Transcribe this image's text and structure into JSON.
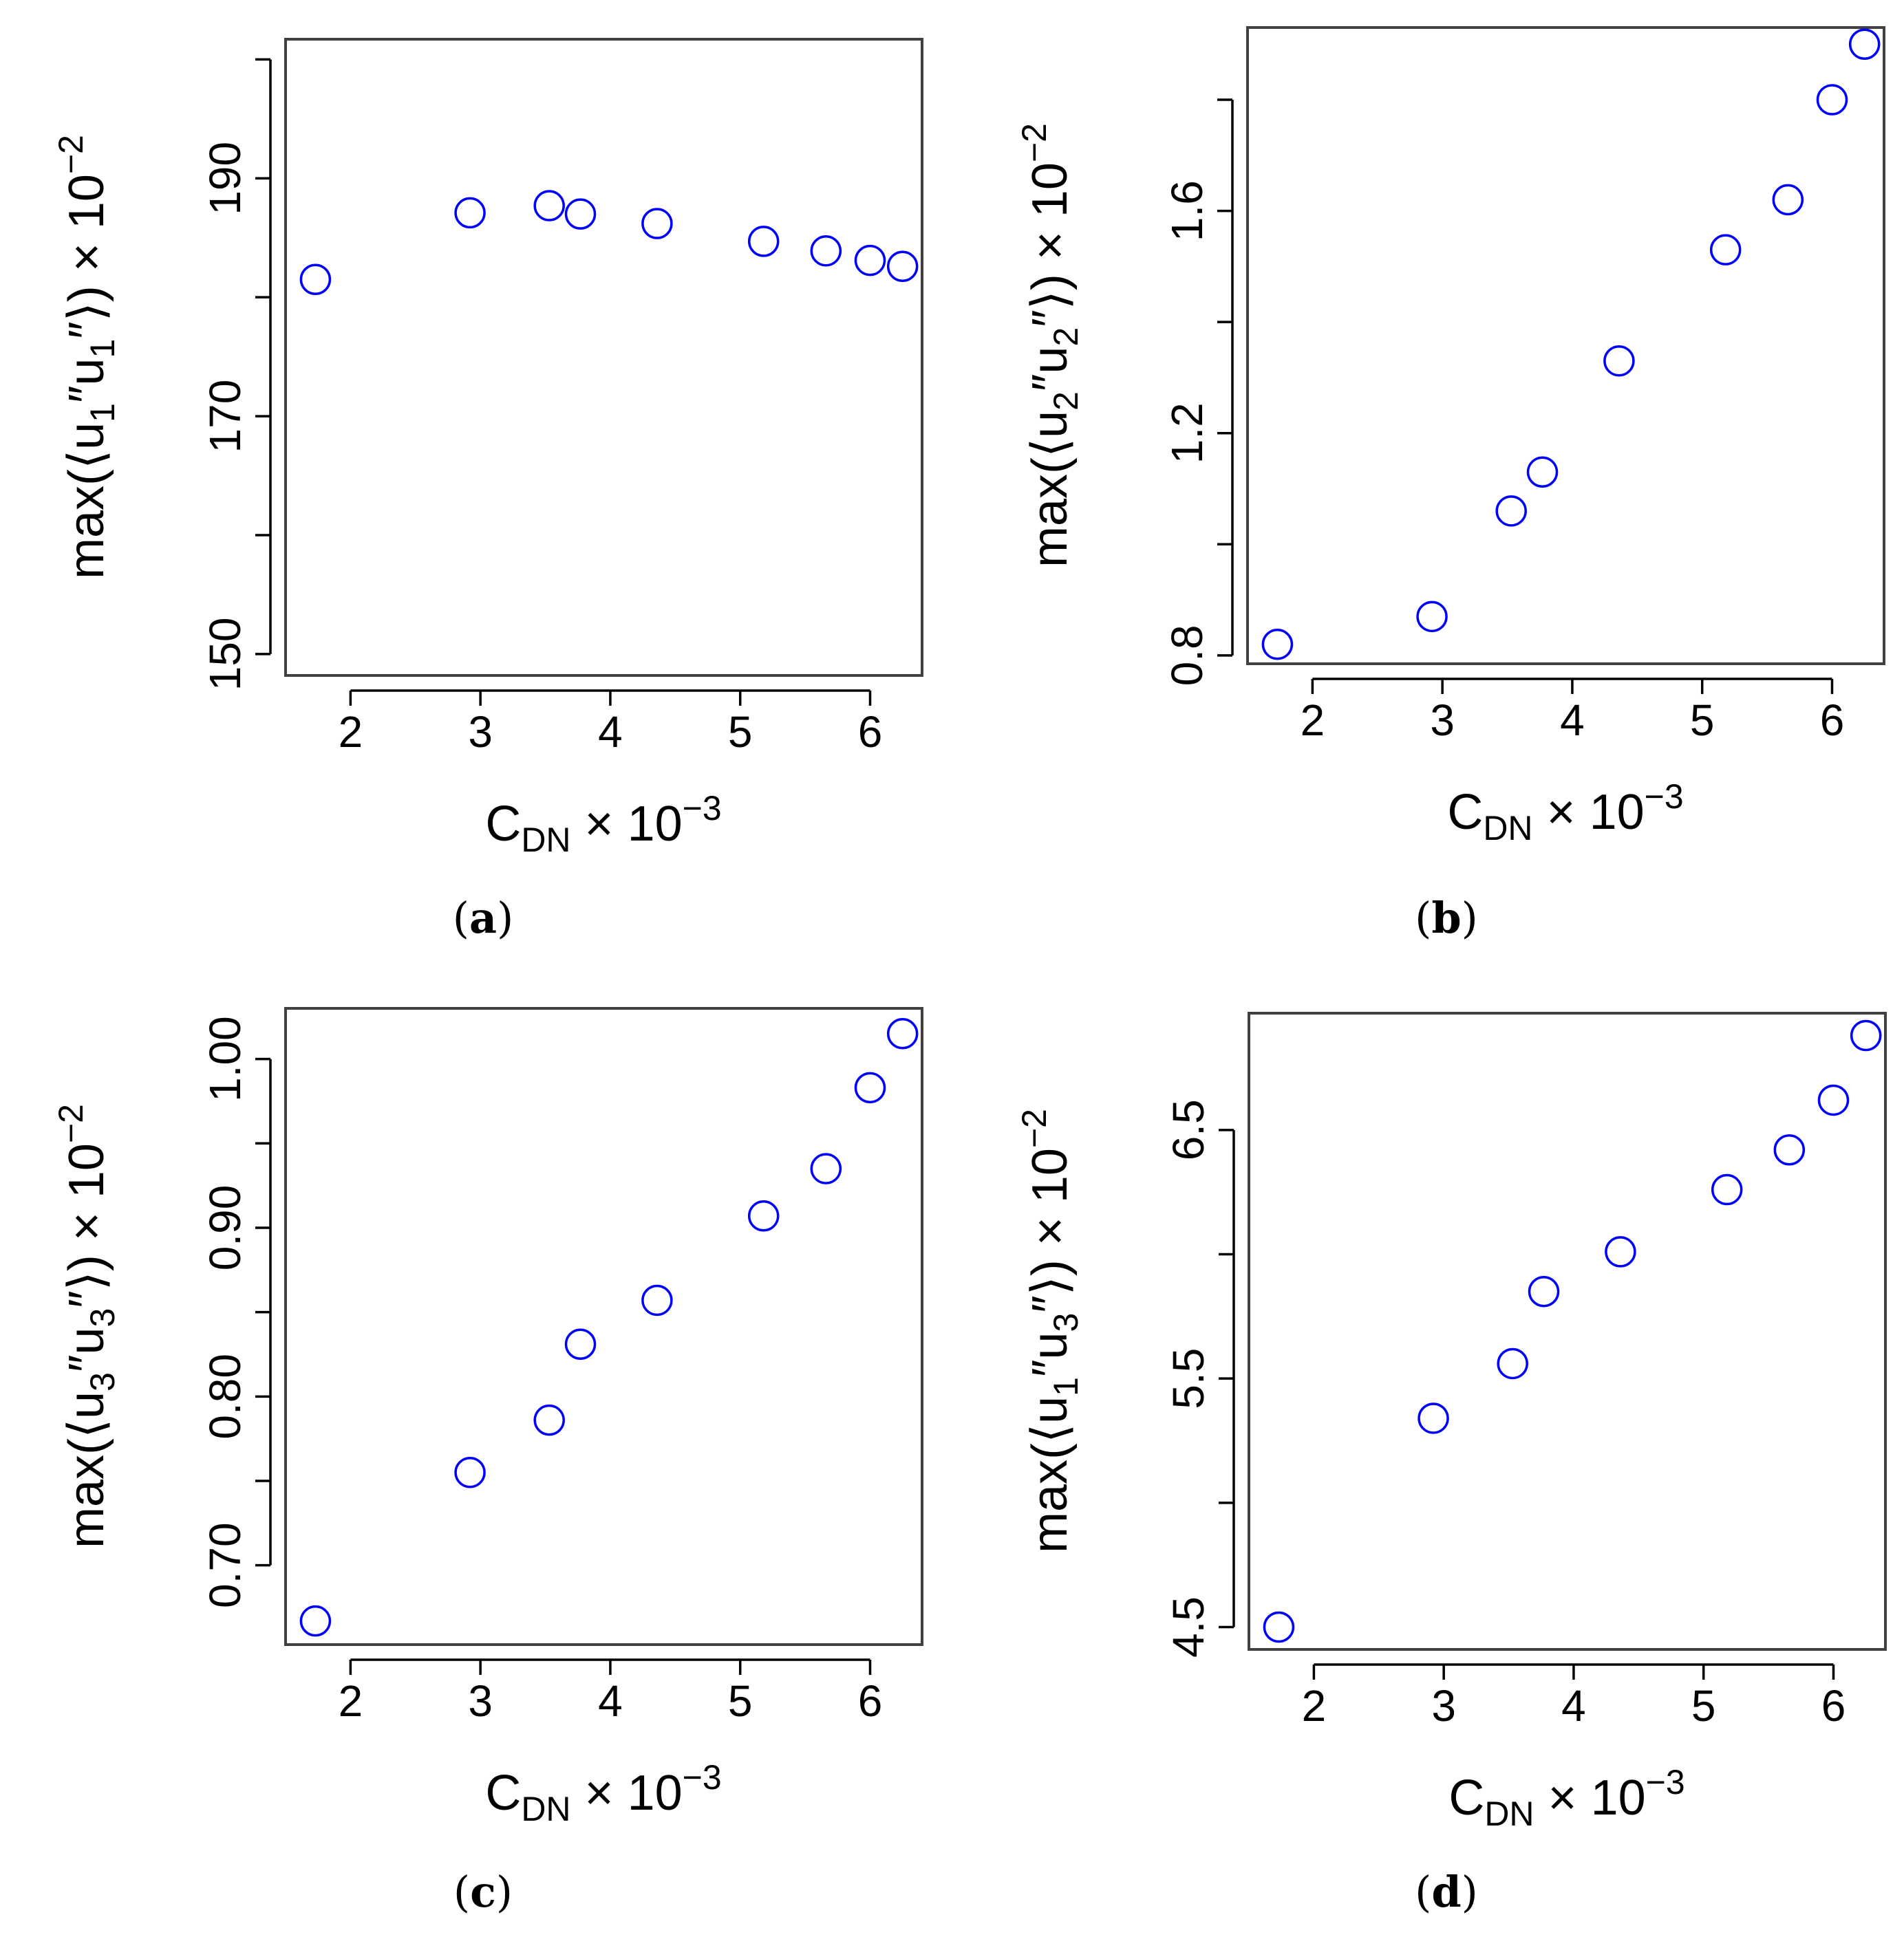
{
  "style": {
    "point_color": "#0000FF",
    "frame_color": "#404040"
  },
  "charts": [
    {
      "caption": "a",
      "ylabel": {
        "prefix": "max(⟨u",
        "sub1": "1",
        "mid": "″u",
        "sub2": "1",
        "suffix": "″⟩) × 10",
        "exp": "−2"
      },
      "xlabel": {
        "main": "C",
        "sub": "DN",
        "rest": " × 10",
        "exp": "−3"
      }
    },
    {
      "caption": "b",
      "ylabel": {
        "prefix": "max(⟨u",
        "sub1": "2",
        "mid": "″u",
        "sub2": "2",
        "suffix": "″⟩) × 10",
        "exp": "−2"
      },
      "xlabel": {
        "main": "C",
        "sub": "DN",
        "rest": " × 10",
        "exp": "−3"
      }
    },
    {
      "caption": "c",
      "ylabel": {
        "prefix": "max(⟨u",
        "sub1": "3",
        "mid": "″u",
        "sub2": "3",
        "suffix": "″⟩) × 10",
        "exp": "−2"
      },
      "xlabel": {
        "main": "C",
        "sub": "DN",
        "rest": " × 10",
        "exp": "−3"
      }
    },
    {
      "caption": "d",
      "ylabel": {
        "prefix": "max(⟨u",
        "sub1": "1",
        "mid": "″u",
        "sub2": "3",
        "suffix": "″⟩) × 10",
        "exp": "−2"
      },
      "xlabel": {
        "main": "C",
        "sub": "DN",
        "rest": " × 10",
        "exp": "−3"
      }
    }
  ],
  "chart_data": [
    {
      "type": "scatter",
      "panel": "a",
      "title": "",
      "x": [
        1.73,
        2.92,
        3.53,
        3.77,
        4.36,
        5.18,
        5.66,
        6.0,
        6.25
      ],
      "y": [
        181.5,
        187.1,
        187.7,
        187.0,
        186.2,
        184.7,
        183.9,
        183.1,
        182.6
      ],
      "xlim": [
        1.5,
        6.4
      ],
      "ylim": [
        148.2,
        201.7
      ],
      "xticks": [
        2,
        3,
        4,
        5,
        6
      ],
      "xtick_labels": [
        "2",
        "3",
        "4",
        "5",
        "6"
      ],
      "yticks": [
        150,
        160,
        170,
        180,
        190,
        200
      ],
      "ytick_labels": [
        "150",
        "",
        "170",
        "",
        "190",
        ""
      ],
      "xlabel": "C_DN × 10^-3",
      "ylabel": "max(⟨u1″u1″⟩) × 10^-2"
    },
    {
      "type": "scatter",
      "panel": "b",
      "title": "",
      "x": [
        1.73,
        2.92,
        3.53,
        3.77,
        4.36,
        5.18,
        5.66,
        6.0,
        6.25
      ],
      "y": [
        0.82,
        0.87,
        1.06,
        1.13,
        1.33,
        1.53,
        1.62,
        1.8,
        1.9
      ],
      "xlim": [
        1.5,
        6.4
      ],
      "ylim": [
        0.785,
        1.93
      ],
      "xticks": [
        2,
        3,
        4,
        5,
        6
      ],
      "xtick_labels": [
        "2",
        "3",
        "4",
        "5",
        "6"
      ],
      "yticks": [
        0.8,
        1.0,
        1.2,
        1.4,
        1.6,
        1.8
      ],
      "ytick_labels": [
        "0.8",
        "",
        "1.2",
        "",
        "1.6",
        ""
      ],
      "xlabel": "C_DN × 10^-3",
      "ylabel": "max(⟨u2″u2″⟩) × 10^-2"
    },
    {
      "type": "scatter",
      "panel": "c",
      "title": "",
      "x": [
        1.73,
        2.92,
        3.53,
        3.77,
        4.36,
        5.18,
        5.66,
        6.0,
        6.25
      ],
      "y": [
        0.667,
        0.755,
        0.786,
        0.831,
        0.857,
        0.907,
        0.935,
        0.983,
        1.015
      ],
      "xlim": [
        1.5,
        6.4
      ],
      "ylim": [
        0.653,
        1.03
      ],
      "xticks": [
        2,
        3,
        4,
        5,
        6
      ],
      "xtick_labels": [
        "2",
        "3",
        "4",
        "5",
        "6"
      ],
      "yticks": [
        0.7,
        0.75,
        0.8,
        0.85,
        0.9,
        0.95,
        1.0
      ],
      "ytick_labels": [
        "0.70",
        "",
        "0.80",
        "",
        "0.90",
        "",
        "1.00"
      ],
      "xlabel": "C_DN × 10^-3",
      "ylabel": "max(⟨u3″u3″⟩) × 10^-2"
    },
    {
      "type": "scatter",
      "panel": "d",
      "title": "",
      "x": [
        1.73,
        2.92,
        3.53,
        3.77,
        4.36,
        5.18,
        5.66,
        6.0,
        6.25
      ],
      "y": [
        4.5,
        5.34,
        5.56,
        5.85,
        6.01,
        6.26,
        6.42,
        6.62,
        6.88
      ],
      "xlim": [
        1.5,
        6.4
      ],
      "ylim": [
        4.41,
        6.97
      ],
      "xticks": [
        2,
        3,
        4,
        5,
        6
      ],
      "xtick_labels": [
        "2",
        "3",
        "4",
        "5",
        "6"
      ],
      "yticks": [
        4.5,
        5.0,
        5.5,
        6.0,
        6.5
      ],
      "ytick_labels": [
        "4.5",
        "",
        "5.5",
        "",
        "6.5"
      ],
      "xlabel": "C_DN × 10^-3",
      "ylabel": "max(⟨u1″u3″⟩) × 10^-2"
    }
  ]
}
